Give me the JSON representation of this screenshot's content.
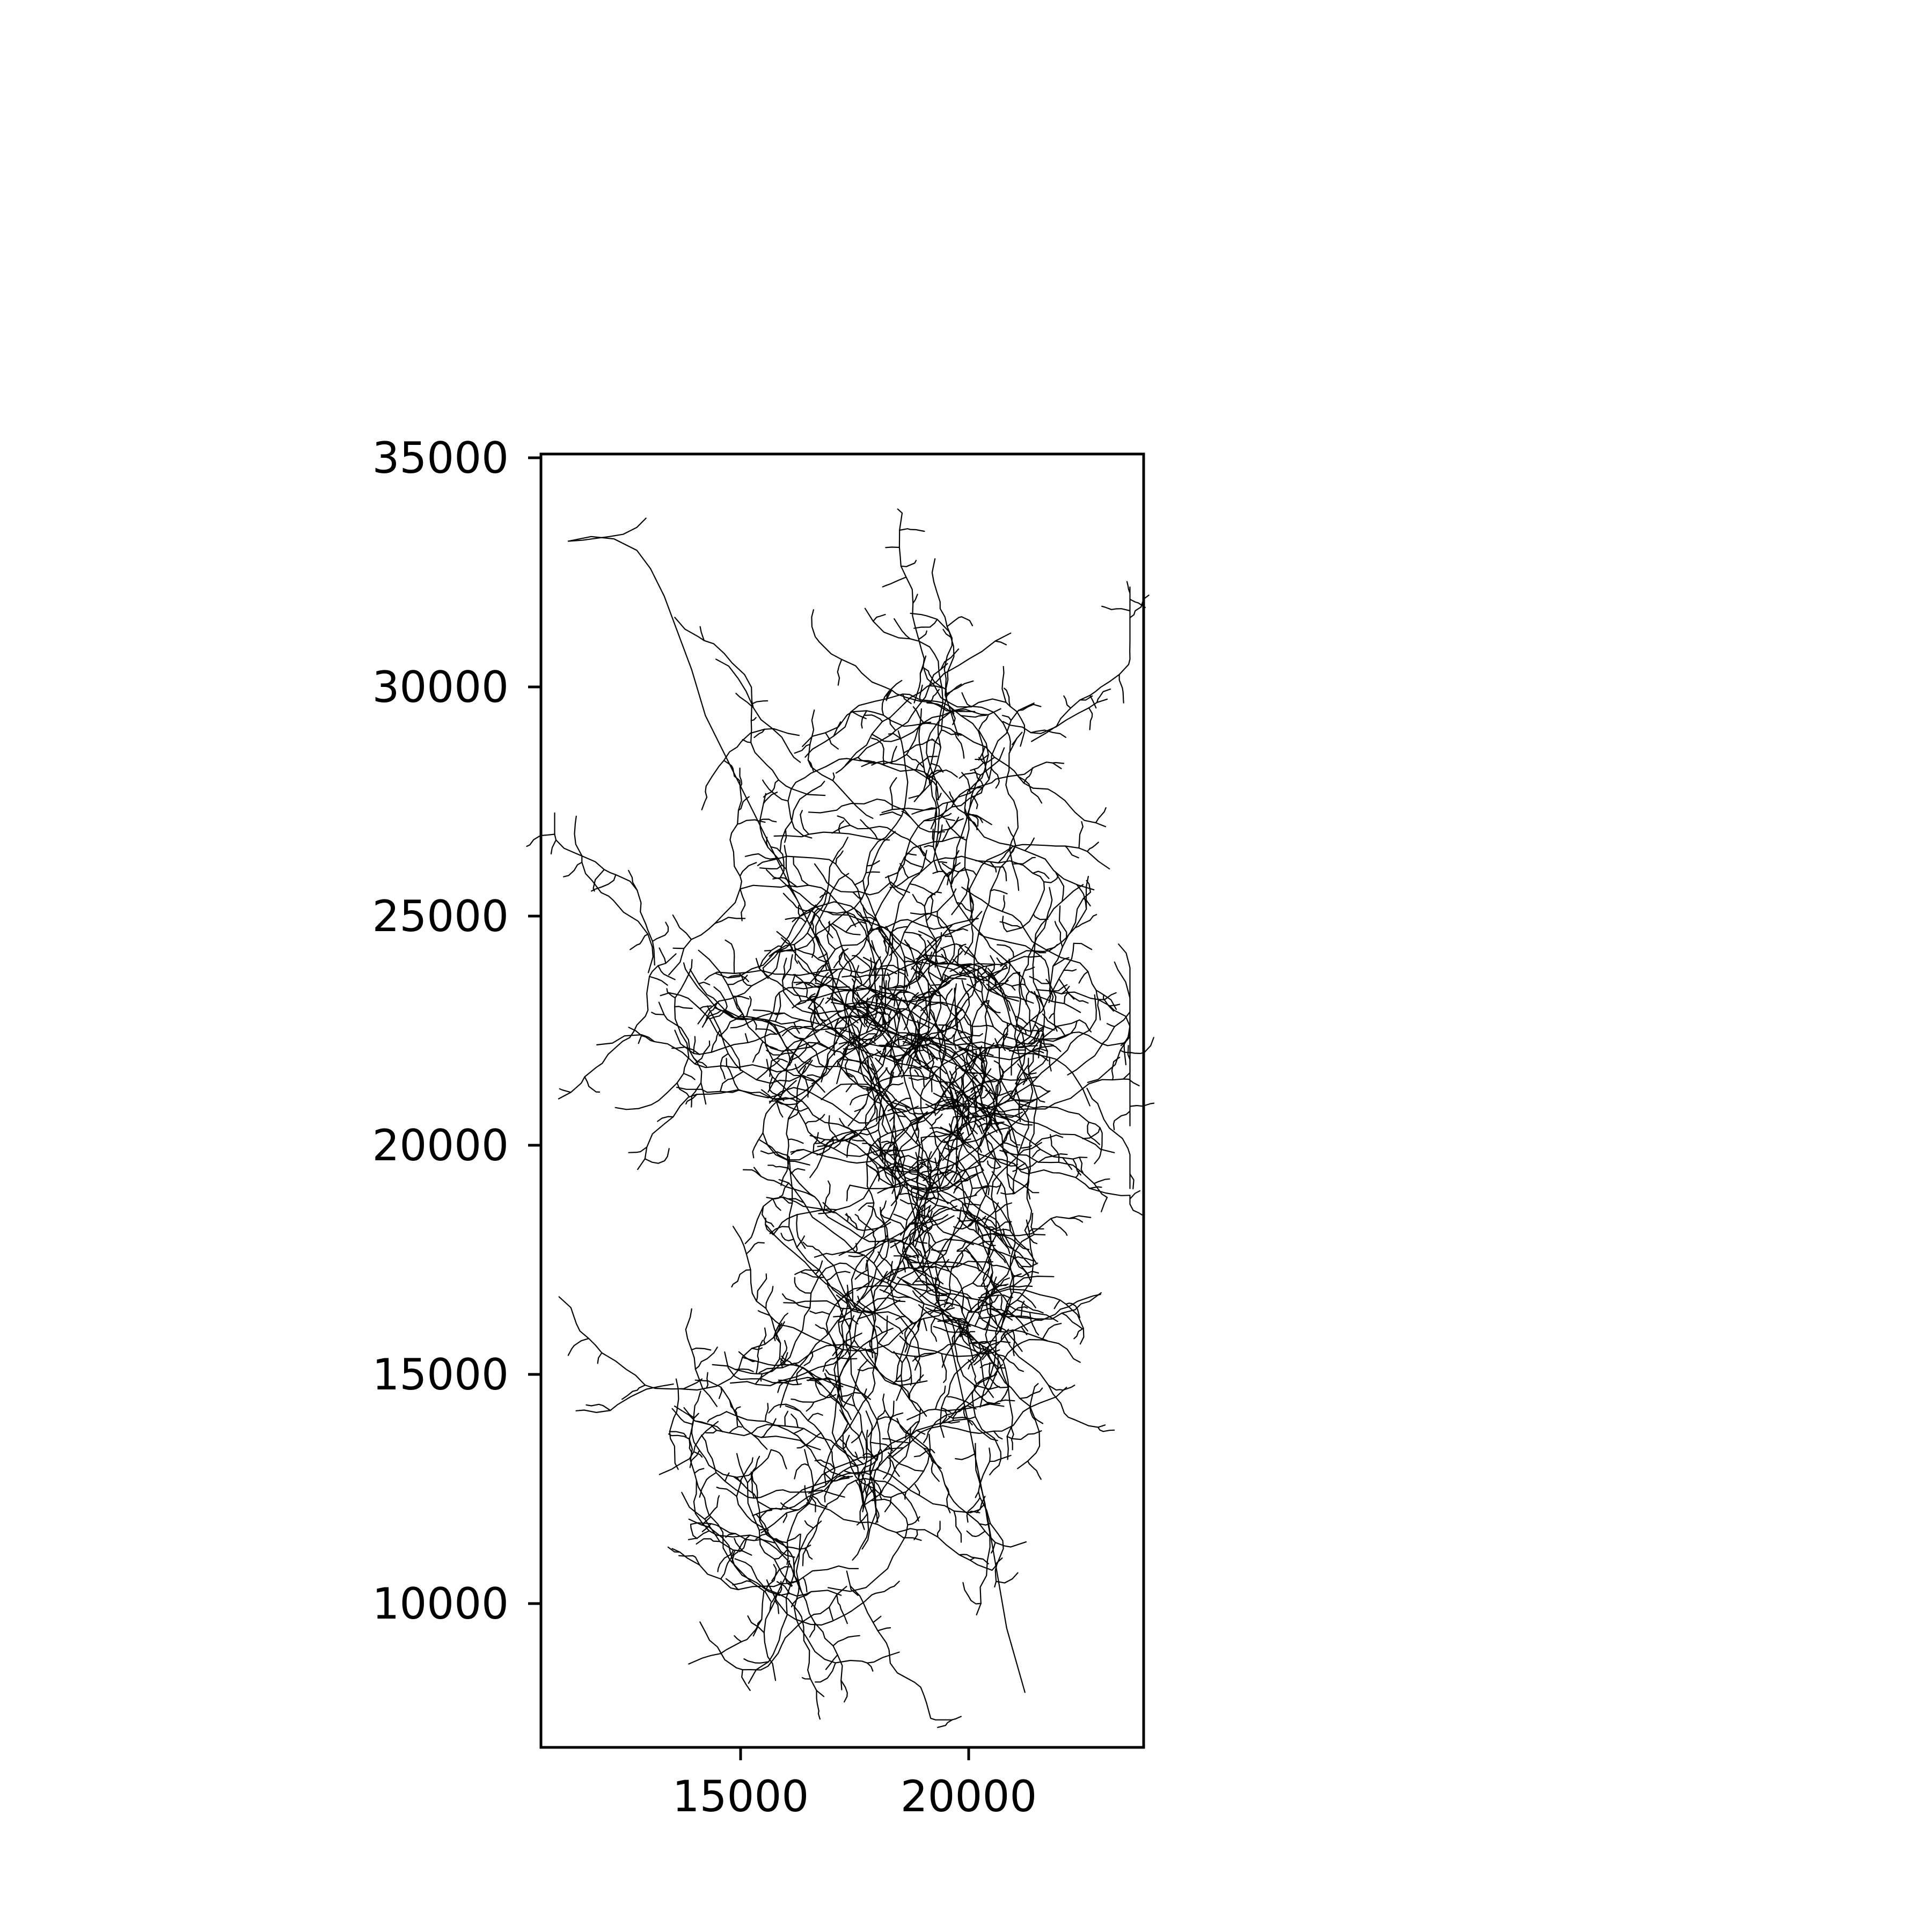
{
  "chart_data": {
    "type": "line",
    "title": "",
    "xlabel": "",
    "ylabel": "",
    "xlim": [
      10600,
      23800
    ],
    "ylim": [
      6900,
      35100
    ],
    "x_ticks": [
      15000,
      20000
    ],
    "x_tick_labels": [
      "15000",
      "20000"
    ],
    "y_ticks": [
      10000,
      15000,
      20000,
      25000,
      30000,
      35000
    ],
    "y_tick_labels": [
      "10000",
      "15000",
      "20000",
      "25000",
      "30000",
      "35000"
    ],
    "grid": false,
    "legend": "none",
    "line_color": "#000000",
    "series": [
      {
        "x": [
          11200,
          11700,
          12200,
          12700,
          13000,
          13300,
          13600,
          13900,
          14200,
          14800,
          15400,
          16000,
          16600,
          17200,
          17800,
          18400,
          18800,
          19200,
          19600,
          20000,
          20400,
          20800,
          21200
        ],
        "y": [
          33200,
          33300,
          33250,
          33000,
          32600,
          32000,
          31200,
          30400,
          29400,
          28200,
          27000,
          25800,
          24600,
          23200,
          21600,
          20000,
          18400,
          17000,
          15600,
          13800,
          11800,
          9500,
          8100
        ]
      },
      {
        "x": [
          11200,
          11500,
          11800,
          12100,
          12400,
          12700,
          12900
        ],
        "y": [
          33200,
          33220,
          33260,
          33300,
          33350,
          33500,
          33700
        ]
      }
    ]
  }
}
